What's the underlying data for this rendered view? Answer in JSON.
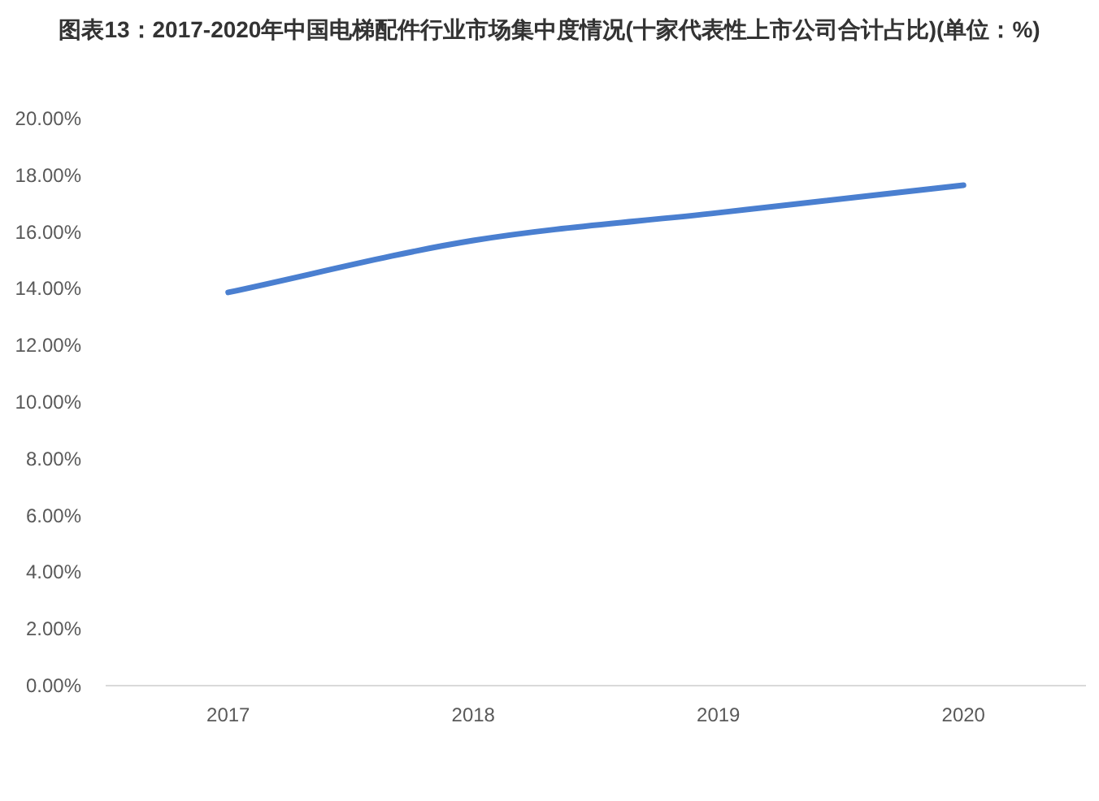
{
  "chart_data": {
    "type": "line",
    "title": "图表13：2017-2020年中国电梯配件行业市场集中度情况(十家代表性上市公司合计占比)(单位：%)",
    "categories": [
      "2017",
      "2018",
      "2019",
      "2020"
    ],
    "series": [
      {
        "color": "#4a7fd0",
        "values": [
          13.87,
          15.7,
          16.68,
          17.65
        ]
      }
    ],
    "ylim": [
      0,
      20
    ],
    "yticks": [
      {
        "value": 0,
        "label": "0.00%"
      },
      {
        "value": 2,
        "label": "2.00%"
      },
      {
        "value": 4,
        "label": "4.00%"
      },
      {
        "value": 6,
        "label": "6.00%"
      },
      {
        "value": 8,
        "label": "8.00%"
      },
      {
        "value": 10,
        "label": "10.00%"
      },
      {
        "value": 12,
        "label": "12.00%"
      },
      {
        "value": 14,
        "label": "14.00%"
      },
      {
        "value": 16,
        "label": "16.00%"
      },
      {
        "value": 18,
        "label": "18.00%"
      },
      {
        "value": 20,
        "label": "20.00%"
      }
    ]
  }
}
